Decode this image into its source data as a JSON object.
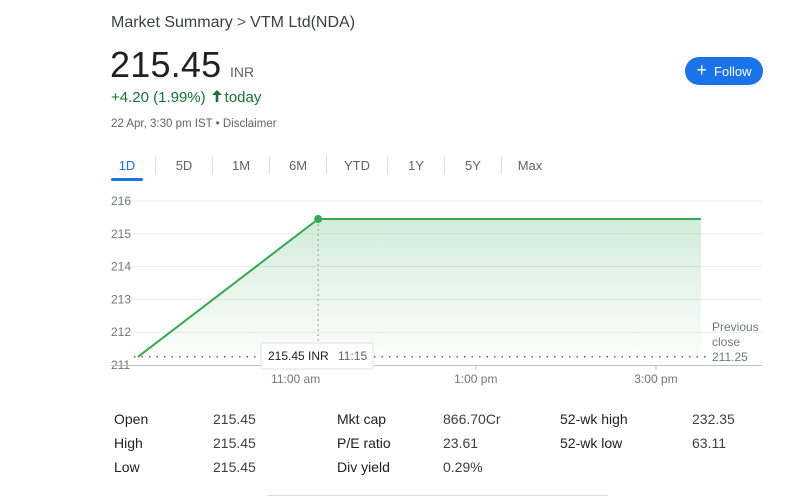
{
  "breadcrumb": {
    "root": "Market Summary",
    "separator": ">",
    "current": "VTM Ltd(NDA)"
  },
  "quote": {
    "price": "215.45",
    "currency": "INR",
    "change": "+4.20 (1.99%)",
    "change_suffix": "today",
    "timestamp": "22 Apr, 3:30 pm IST",
    "bullet": "•",
    "disclaimer": "Disclaimer",
    "color_up": "#137333"
  },
  "follow_button": {
    "icon": "plus-icon",
    "label": "Follow",
    "color": "#1a73e8"
  },
  "tabs": [
    {
      "label": "1D",
      "active": true
    },
    {
      "label": "5D",
      "active": false
    },
    {
      "label": "1M",
      "active": false
    },
    {
      "label": "6M",
      "active": false
    },
    {
      "label": "YTD",
      "active": false
    },
    {
      "label": "1Y",
      "active": false
    },
    {
      "label": "5Y",
      "active": false
    },
    {
      "label": "Max",
      "active": false
    }
  ],
  "chart_data": {
    "type": "area",
    "series": [
      {
        "x": [
          "09:15",
          "11:15",
          "15:30"
        ],
        "values": [
          211.25,
          215.45,
          215.45
        ]
      }
    ],
    "yticks": [
      "216",
      "215",
      "214",
      "213",
      "212",
      "211"
    ],
    "ylim": [
      211,
      216
    ],
    "xticks": [
      "11:00 am",
      "1:00 pm",
      "3:00 pm"
    ],
    "previous_close": {
      "label_line1": "Previous",
      "label_line2": "close",
      "value": "211.25"
    },
    "tooltip": {
      "price": "215.45 INR",
      "time": "11:15"
    },
    "grid": true,
    "line_color": "#34a853"
  },
  "stats": {
    "columns": [
      [
        {
          "label": "Open",
          "value": "215.45"
        },
        {
          "label": "High",
          "value": "215.45"
        },
        {
          "label": "Low",
          "value": "215.45"
        }
      ],
      [
        {
          "label": "Mkt cap",
          "value": "866.70Cr"
        },
        {
          "label": "P/E ratio",
          "value": "23.61"
        },
        {
          "label": "Div yield",
          "value": "0.29%"
        }
      ],
      [
        {
          "label": "52-wk high",
          "value": "232.35"
        },
        {
          "label": "52-wk low",
          "value": "63.11"
        }
      ]
    ]
  }
}
